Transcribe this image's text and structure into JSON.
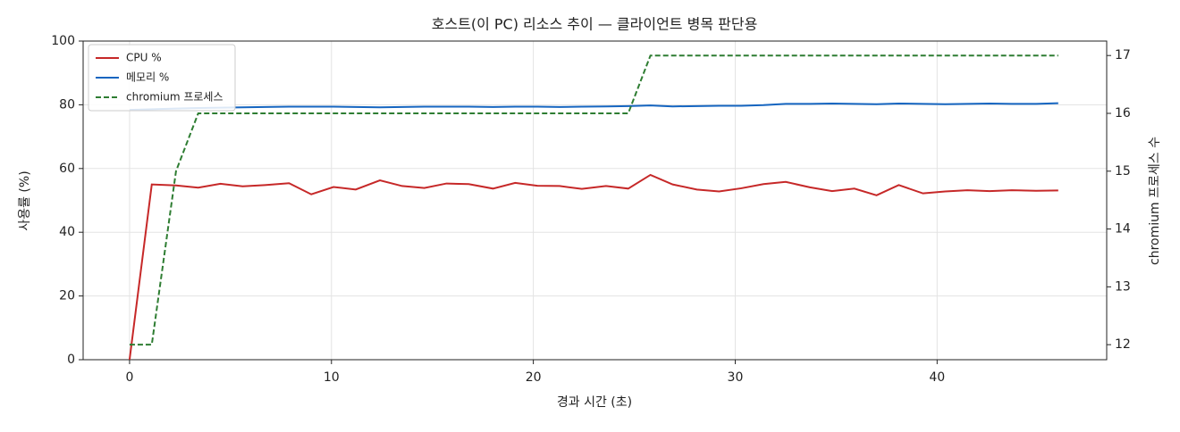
{
  "chart_data": {
    "type": "line",
    "title": "호스트(이 PC) 리소스 추이 — 클라이언트 병목 판단용",
    "x_label": "경과 시간 (초)",
    "y_label": "사용률 (%)",
    "y2_label": "chromium 프로세스 수",
    "x": [
      0,
      1.1,
      2.3,
      3.4,
      4.5,
      5.6,
      6.7,
      7.9,
      9.0,
      10.1,
      11.2,
      12.4,
      13.5,
      14.6,
      15.7,
      16.8,
      18.0,
      19.1,
      20.2,
      21.3,
      22.4,
      23.6,
      24.7,
      25.8,
      26.9,
      28.1,
      29.2,
      30.3,
      31.4,
      32.5,
      33.7,
      34.8,
      35.9,
      37.0,
      38.1,
      39.3,
      40.4,
      41.5,
      42.6,
      43.7,
      44.9,
      46.0
    ],
    "series": [
      {
        "name": "CPU %",
        "color": "#c62828",
        "linestyle": "solid",
        "values": [
          0,
          55,
          54.7,
          54,
          55.2,
          54.4,
          54.8,
          55.4,
          51.9,
          54.2,
          53.4,
          56.3,
          54.5,
          53.9,
          55.3,
          55.1,
          53.7,
          55.5,
          54.6,
          54.5,
          53.6,
          54.5,
          53.7,
          58.0,
          55,
          53.4,
          52.8,
          53.8,
          55.1,
          55.8,
          54.1,
          52.9,
          53.7,
          51.6,
          54.8,
          52.2,
          52.8,
          53.2,
          52.9,
          53.2,
          53.0,
          53.1
        ]
      },
      {
        "name": "메모리 %",
        "color": "#1565c0",
        "linestyle": "solid",
        "values": [
          78.4,
          78.6,
          78.8,
          79.0,
          79.1,
          79.2,
          79.3,
          79.4,
          79.4,
          79.4,
          79.3,
          79.2,
          79.3,
          79.4,
          79.4,
          79.4,
          79.3,
          79.4,
          79.4,
          79.3,
          79.4,
          79.5,
          79.6,
          79.8,
          79.5,
          79.6,
          79.7,
          79.7,
          79.9,
          80.3,
          80.3,
          80.4,
          80.3,
          80.2,
          80.4,
          80.3,
          80.2,
          80.3,
          80.4,
          80.3,
          80.3,
          80.5
        ]
      },
      {
        "name": "chromium 프로세스",
        "color": "#2e7d32",
        "linestyle": "dashed",
        "axis": "y2",
        "values": [
          12,
          12,
          15,
          16,
          16,
          16,
          16,
          16,
          16,
          16,
          16,
          16,
          16,
          16,
          16,
          16,
          16,
          16,
          16,
          16,
          16,
          16,
          16,
          17,
          17,
          17,
          17,
          17,
          17,
          17,
          17,
          17,
          17,
          17,
          17,
          17,
          17,
          17,
          17,
          17,
          17,
          17
        ]
      }
    ],
    "xlim": [
      -2.3,
      48.4
    ],
    "xticks": [
      0,
      10,
      20,
      30,
      40
    ],
    "ylim": [
      0,
      100
    ],
    "yticks": [
      0,
      20,
      40,
      60,
      80,
      100
    ],
    "y2lim": [
      11.74,
      17.25
    ],
    "y2ticks": [
      12,
      13,
      14,
      15,
      16,
      17
    ],
    "grid": true,
    "legend": "upper-left"
  }
}
